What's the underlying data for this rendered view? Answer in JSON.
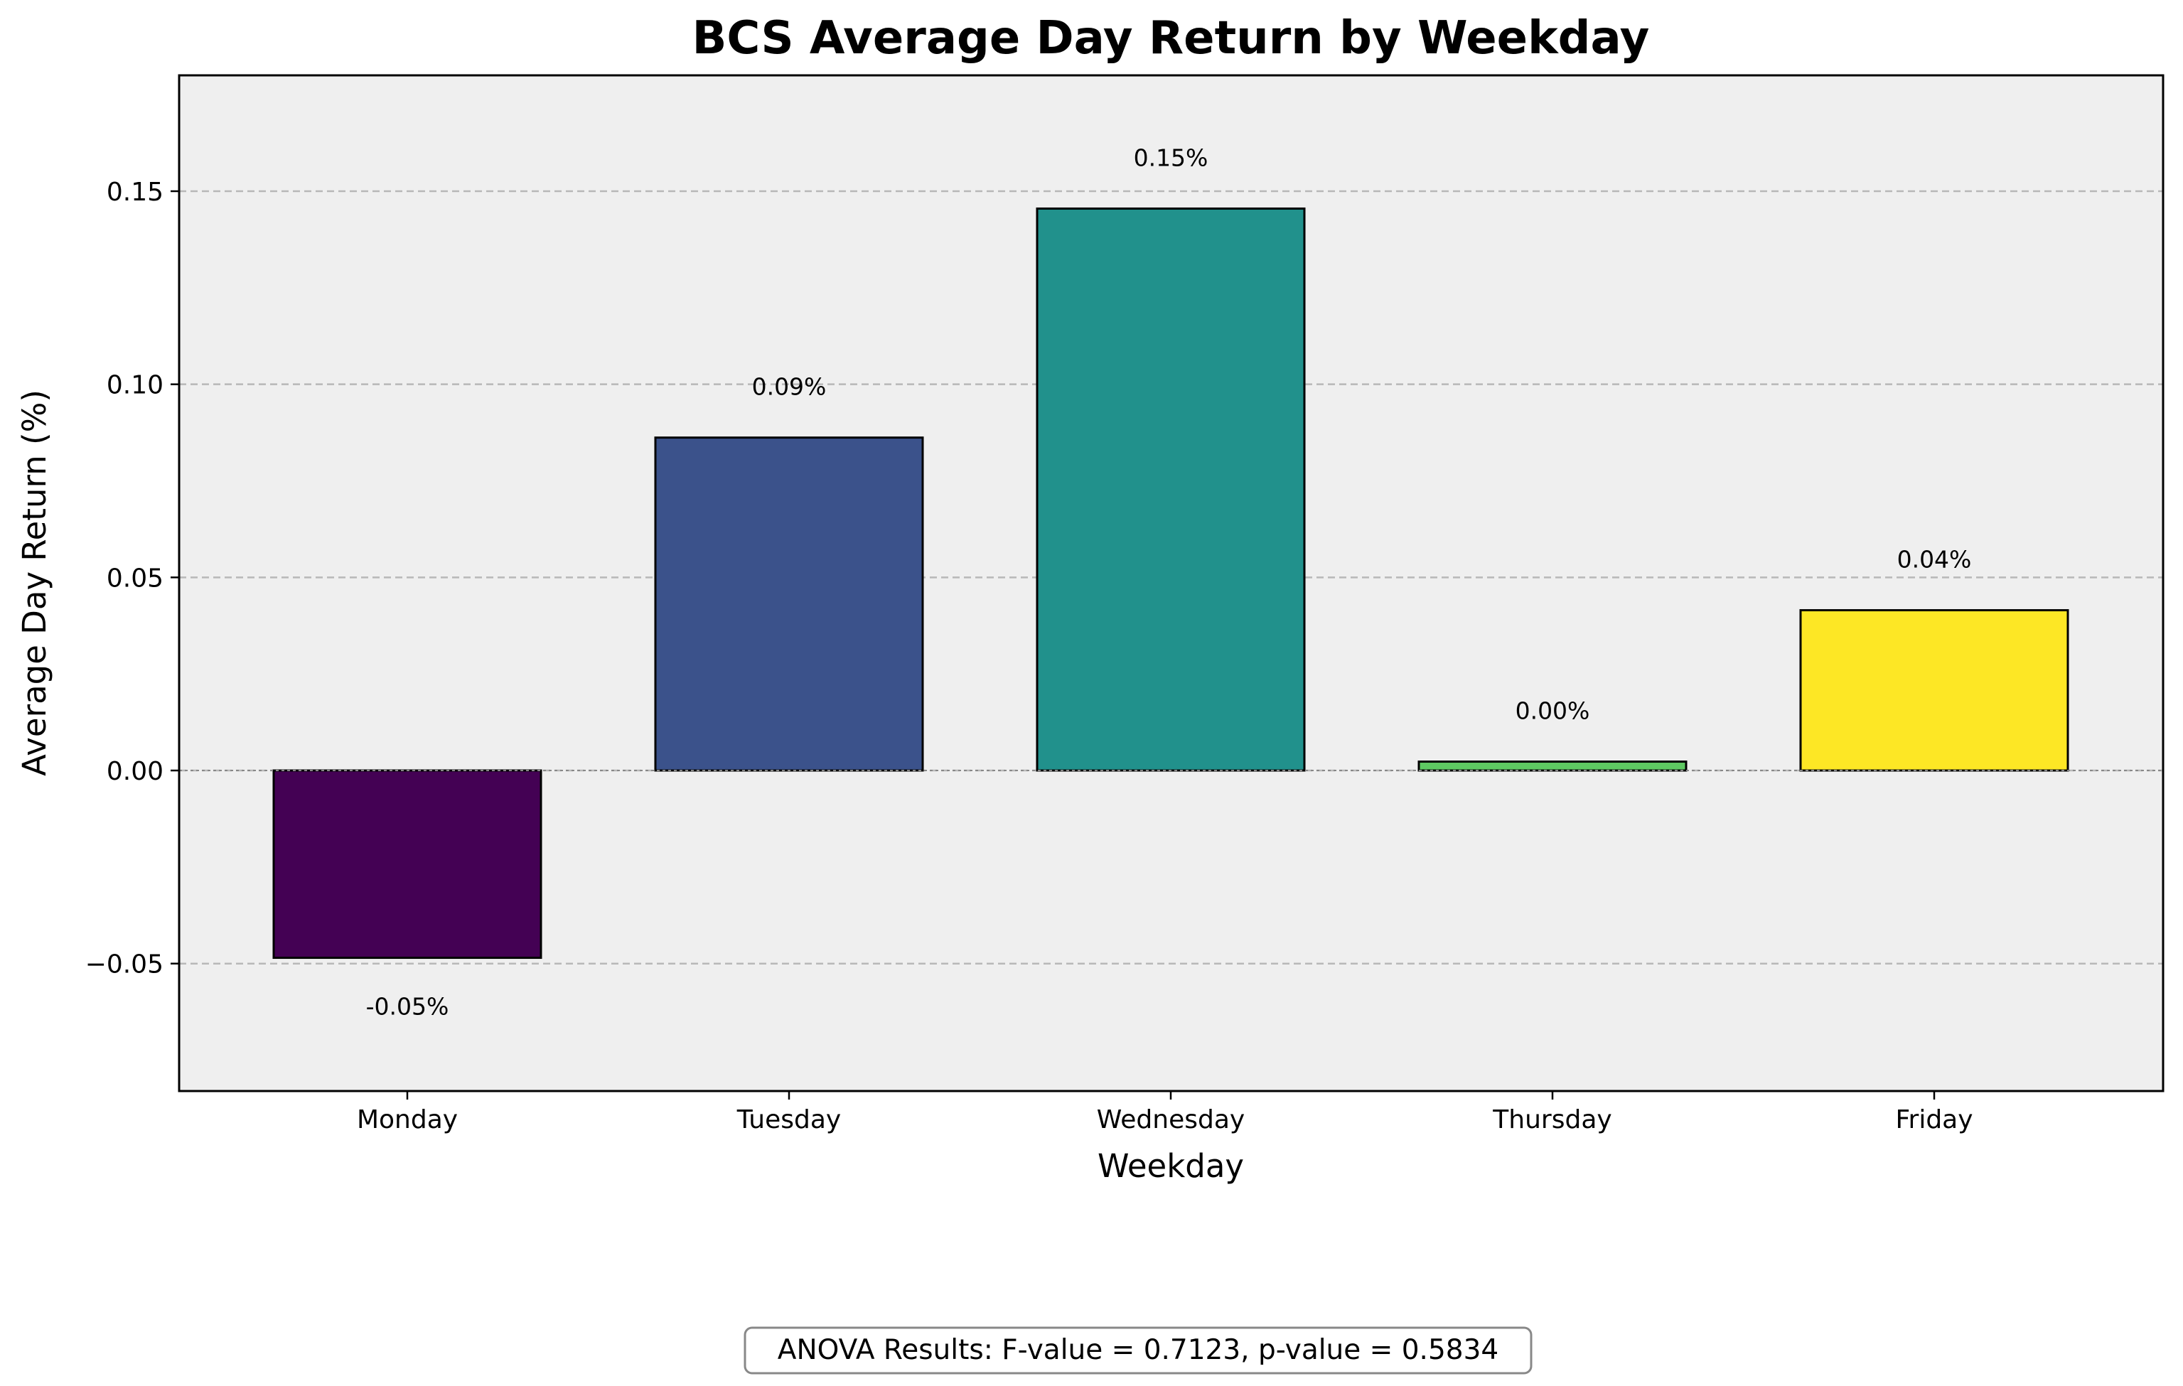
{
  "chart_data": {
    "type": "bar",
    "title": "BCS Average Day Return by Weekday",
    "xlabel": "Weekday",
    "ylabel": "Average Day Return (%)",
    "categories": [
      "Monday",
      "Tuesday",
      "Wednesday",
      "Thursday",
      "Friday"
    ],
    "values": [
      -0.0485,
      0.0862,
      0.1455,
      0.0023,
      0.0415
    ],
    "data_labels": [
      "-0.05%",
      "0.09%",
      "0.15%",
      "0.00%",
      "0.04%"
    ],
    "colors": [
      "#440154",
      "#3b528b",
      "#21918c",
      "#5ec962",
      "#fde725"
    ],
    "ylim": [
      -0.083,
      0.18
    ],
    "yticks": [
      -0.05,
      0.0,
      0.05,
      0.1,
      0.15
    ],
    "ytick_labels": [
      "−0.05",
      "0.00",
      "0.05",
      "0.10",
      "0.15"
    ],
    "grid": "y-dashed",
    "plot_background": "#efefef"
  },
  "annotation": "ANOVA Results: F-value = 0.7123, p-value = 0.5834"
}
